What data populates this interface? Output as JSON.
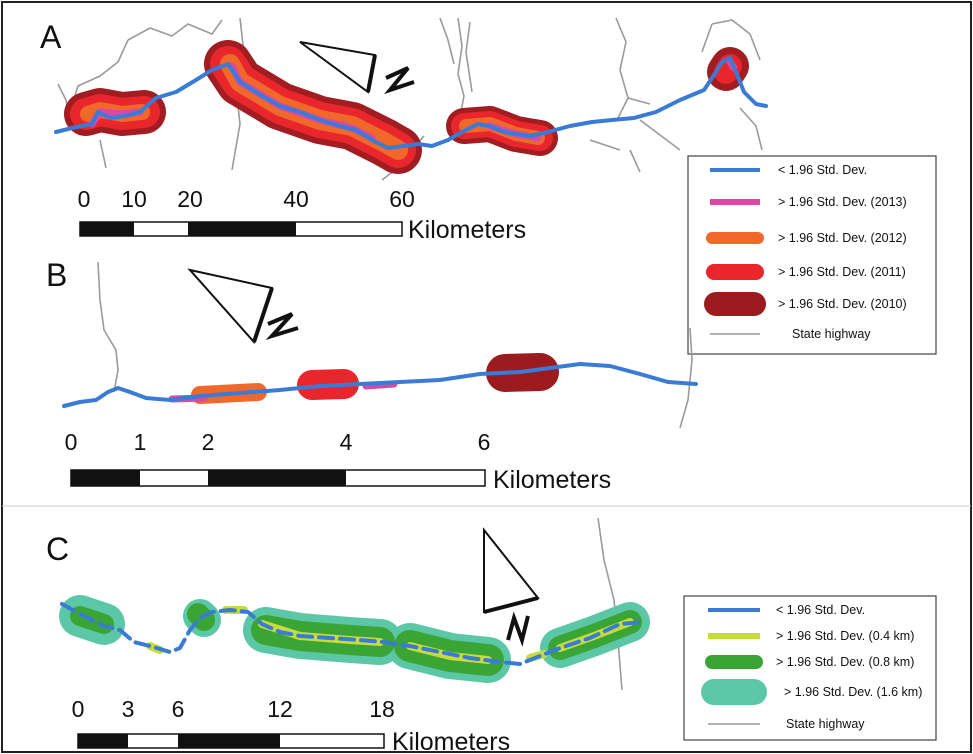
{
  "panels": [
    {
      "letter": "A",
      "scale_ticks": [
        "0",
        "10",
        "20",
        "40",
        "60"
      ],
      "scale_unit": "Kilometers",
      "north": "N",
      "legend": [
        {
          "label": "< 1.96 Std. Dev.",
          "symbol": "line",
          "color": "#3a7bd5"
        },
        {
          "label": "> 1.96 Std. Dev. (2013)",
          "symbol": "line",
          "color": "#d54aa6"
        },
        {
          "label": "> 1.96 Std. Dev. (2012)",
          "symbol": "band",
          "color": "#f0682a"
        },
        {
          "label": "> 1.96 Std. Dev. (2011)",
          "symbol": "band",
          "color": "#e8262b"
        },
        {
          "label": "> 1.96 Std. Dev. (2010)",
          "symbol": "band",
          "color": "#9b1b1e"
        },
        {
          "label": "State highway",
          "symbol": "thin",
          "color": "#9a9a9a"
        }
      ]
    },
    {
      "letter": "B",
      "scale_ticks": [
        "0",
        "1",
        "2",
        "4",
        "6"
      ],
      "scale_unit": "Kilometers",
      "north": "N"
    },
    {
      "letter": "C",
      "scale_ticks": [
        "0",
        "3",
        "6",
        "12",
        "18"
      ],
      "scale_unit": "Kilometers",
      "north": "N",
      "legend": [
        {
          "label": "< 1.96 Std. Dev.",
          "symbol": "line",
          "color": "#3a7bd5"
        },
        {
          "label": "> 1.96 Std. Dev. (0.4 km)",
          "symbol": "line",
          "color": "#c7dc3a"
        },
        {
          "label": "> 1.96 Std. Dev. (0.8 km)",
          "symbol": "band",
          "color": "#3aa535"
        },
        {
          "label": "> 1.96 Std. Dev. (1.6 km)",
          "symbol": "band",
          "color": "#5cc7a6"
        },
        {
          "label": "State highway",
          "symbol": "thin",
          "color": "#9a9a9a"
        }
      ]
    }
  ],
  "colors": {
    "road": "#3a7bd5",
    "highway": "#9a9a9a",
    "y2013": "#d54aa6",
    "y2012": "#f0682a",
    "y2011": "#e8262b",
    "y2010": "#9b1b1e",
    "km04": "#c7dc3a",
    "km08": "#3aa535",
    "km16": "#5cc7a6"
  }
}
